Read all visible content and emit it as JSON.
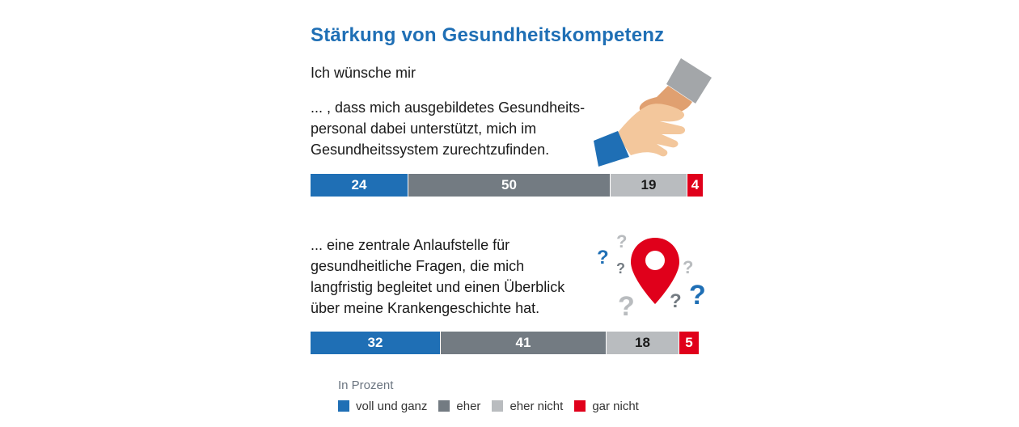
{
  "title": "Stärkung von Gesundheitskompetenz",
  "intro": "Ich wünsche mir",
  "colors": {
    "voll_und_ganz": "#1f6fb5",
    "eher": "#737b82",
    "eher_nicht": "#b9bcbf",
    "gar_nicht": "#e0001b"
  },
  "illustrations": {
    "statement_1": "helping-hand-icon",
    "statement_2": "location-pin-question-icon"
  },
  "chart_data": {
    "type": "bar",
    "orientation": "horizontal",
    "stacked": true,
    "categories": [
      "... , dass mich ausgebildetes Gesundheits-\npersonal dabei unterstützt, mich im\nGesundheitssystem zurechtzufinden.",
      "... eine zentrale Anlaufstelle für\ngesundheitliche Fragen, die mich\nlangfristig begleitet und einen Überblick\nüber meine Krankengeschichte hat."
    ],
    "series": [
      {
        "name": "voll und ganz",
        "values": [
          24,
          32
        ]
      },
      {
        "name": "eher",
        "values": [
          50,
          41
        ]
      },
      {
        "name": "eher nicht",
        "values": [
          19,
          18
        ]
      },
      {
        "name": "gar nicht",
        "values": [
          4,
          5
        ]
      }
    ],
    "unit_label": "In Prozent",
    "legend_position": "bottom"
  }
}
